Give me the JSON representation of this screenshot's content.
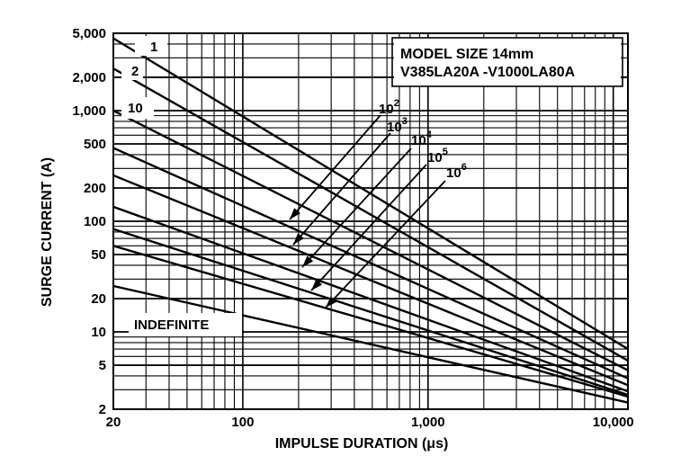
{
  "chart_data": {
    "type": "line",
    "title": "",
    "xlabel": "IMPULSE DURATION (μs)",
    "ylabel": "SURGE CURRENT (A)",
    "x_scale": "log",
    "y_scale": "log",
    "xlim": [
      20,
      12000
    ],
    "ylim": [
      2,
      5000
    ],
    "grid": true,
    "x_ticks": [
      {
        "value": 20,
        "label": "20"
      },
      {
        "value": 100,
        "label": "100"
      },
      {
        "value": 1000,
        "label": "1,000"
      },
      {
        "value": 10000,
        "label": "10,000"
      }
    ],
    "y_ticks": [
      {
        "value": 5000,
        "label": "5,000"
      },
      {
        "value": 2000,
        "label": "2,000"
      },
      {
        "value": 1000,
        "label": "1,000"
      },
      {
        "value": 500,
        "label": "500"
      },
      {
        "value": 200,
        "label": "200"
      },
      {
        "value": 100,
        "label": "100"
      },
      {
        "value": 50,
        "label": "50"
      },
      {
        "value": 20,
        "label": "20"
      },
      {
        "value": 10,
        "label": "10"
      },
      {
        "value": 5,
        "label": "5"
      },
      {
        "value": 2,
        "label": "2"
      }
    ],
    "annotation_box": {
      "line1": "MODEL SIZE 14mm",
      "line2": "V385LA20A -V1000LA80A"
    },
    "curve_labels": [
      {
        "text": "1"
      },
      {
        "text": "2"
      },
      {
        "text": "10"
      },
      {
        "base": "10",
        "exp": "2"
      },
      {
        "base": "10",
        "exp": "3"
      },
      {
        "base": "10",
        "exp": "4"
      },
      {
        "base": "10",
        "exp": "5"
      },
      {
        "base": "10",
        "exp": "6"
      },
      {
        "text": "INDEFINITE"
      }
    ],
    "series": [
      {
        "name": "1",
        "x": [
          20,
          12000
        ],
        "y": [
          4500,
          7
        ]
      },
      {
        "name": "2",
        "x": [
          20,
          12000
        ],
        "y": [
          2400,
          5.5
        ]
      },
      {
        "name": "10",
        "x": [
          20,
          12000
        ],
        "y": [
          1000,
          4.5
        ]
      },
      {
        "name": "10^2",
        "x": [
          20,
          12000
        ],
        "y": [
          460,
          3.8
        ]
      },
      {
        "name": "10^3",
        "x": [
          20,
          12000
        ],
        "y": [
          260,
          3.3
        ]
      },
      {
        "name": "10^4",
        "x": [
          20,
          12000
        ],
        "y": [
          135,
          2.9
        ]
      },
      {
        "name": "10^5",
        "x": [
          20,
          12000
        ],
        "y": [
          85,
          2.7
        ]
      },
      {
        "name": "10^6",
        "x": [
          20,
          12000
        ],
        "y": [
          60,
          2.6
        ]
      },
      {
        "name": "INDEFINITE",
        "x": [
          20,
          12000
        ],
        "y": [
          26,
          2.3
        ]
      }
    ]
  }
}
